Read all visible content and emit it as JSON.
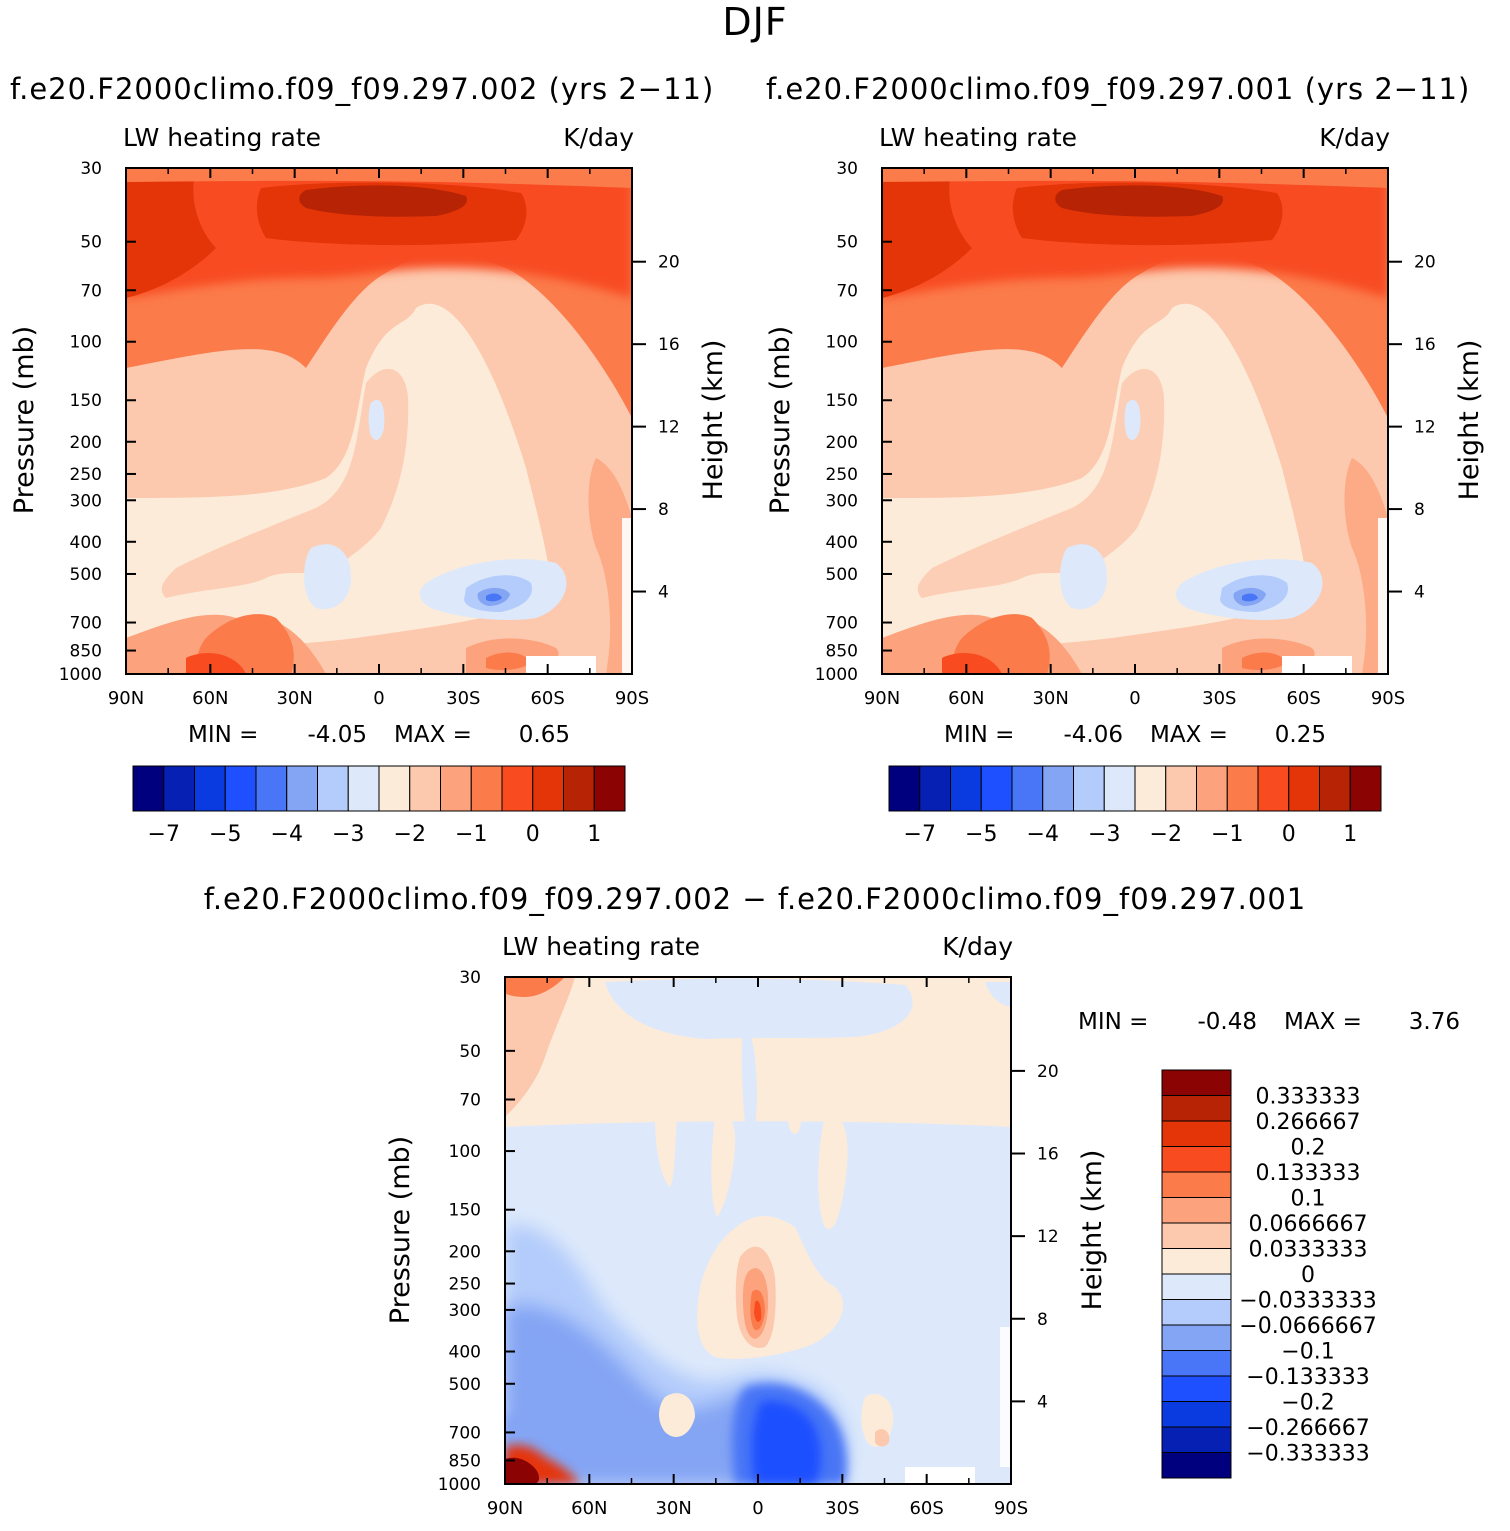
{
  "title": "DJF",
  "chart_data": [
    {
      "type": "heatmap",
      "title": "f.e20.F2000climo.f09_f09.297.002 (yrs 2−11)",
      "left_label": "LW heating rate",
      "right_label": "K/day",
      "xlabel": "",
      "ylabel": "Pressure (mb)",
      "ylabel_right": "Height (km)",
      "x_ticks": [
        "90N",
        "60N",
        "30N",
        "0",
        "30S",
        "60S",
        "90S"
      ],
      "y_ticks": [
        30,
        50,
        70,
        100,
        150,
        200,
        250,
        300,
        400,
        500,
        700,
        850,
        1000
      ],
      "y_ticks_right": [
        20,
        16,
        12,
        8,
        4
      ],
      "xlim": [
        90,
        -90
      ],
      "ylim": [
        1000,
        30
      ],
      "min_label": "MIN =",
      "min_value": "-4.05",
      "max_label": "MAX =",
      "max_value": "0.65",
      "colorbar_labels": [
        "−7",
        "−5",
        "−4",
        "−3",
        "−2",
        "−1",
        "0",
        "1"
      ]
    },
    {
      "type": "heatmap",
      "title": "f.e20.F2000climo.f09_f09.297.001 (yrs 2−11)",
      "left_label": "LW heating rate",
      "right_label": "K/day",
      "xlabel": "",
      "ylabel": "Pressure (mb)",
      "ylabel_right": "Height (km)",
      "x_ticks": [
        "90N",
        "60N",
        "30N",
        "0",
        "30S",
        "60S",
        "90S"
      ],
      "y_ticks": [
        30,
        50,
        70,
        100,
        150,
        200,
        250,
        300,
        400,
        500,
        700,
        850,
        1000
      ],
      "y_ticks_right": [
        20,
        16,
        12,
        8,
        4
      ],
      "xlim": [
        90,
        -90
      ],
      "ylim": [
        1000,
        30
      ],
      "min_label": "MIN =",
      "min_value": "-4.06",
      "max_label": "MAX =",
      "max_value": "0.25",
      "colorbar_labels": [
        "−7",
        "−5",
        "−4",
        "−3",
        "−2",
        "−1",
        "0",
        "1"
      ]
    },
    {
      "type": "heatmap",
      "title": "f.e20.F2000climo.f09_f09.297.002 − f.e20.F2000climo.f09_f09.297.001",
      "left_label": "LW heating rate",
      "right_label": "K/day",
      "xlabel": "",
      "ylabel": "Pressure (mb)",
      "ylabel_right": "Height (km)",
      "x_ticks": [
        "90N",
        "60N",
        "30N",
        "0",
        "30S",
        "60S",
        "90S"
      ],
      "y_ticks": [
        30,
        50,
        70,
        100,
        150,
        200,
        250,
        300,
        400,
        500,
        700,
        850,
        1000
      ],
      "y_ticks_right": [
        20,
        16,
        12,
        8,
        4
      ],
      "xlim": [
        90,
        -90
      ],
      "ylim": [
        1000,
        30
      ],
      "min_label": "MIN =",
      "min_value": "-0.48",
      "max_label": "MAX =",
      "max_value": "3.76",
      "colorbar_labels": [
        "0.333333",
        "0.266667",
        "0.2",
        "0.133333",
        "0.1",
        "0.0666667",
        "0.0333333",
        "0",
        "−0.0333333",
        "−0.0666667",
        "−0.1",
        "−0.133333",
        "−0.2",
        "−0.266667",
        "−0.333333"
      ]
    }
  ],
  "colors": {
    "palette": [
      "#00007f",
      "#0720b4",
      "#0a3be0",
      "#1f50ff",
      "#4876f6",
      "#84a4f4",
      "#b3ccfb",
      "#dde9fb",
      "#fdebd9",
      "#fcc9ae",
      "#fca27c",
      "#fb7b4b",
      "#f84c20",
      "#e43508",
      "#b72405",
      "#8c0303"
    ]
  }
}
